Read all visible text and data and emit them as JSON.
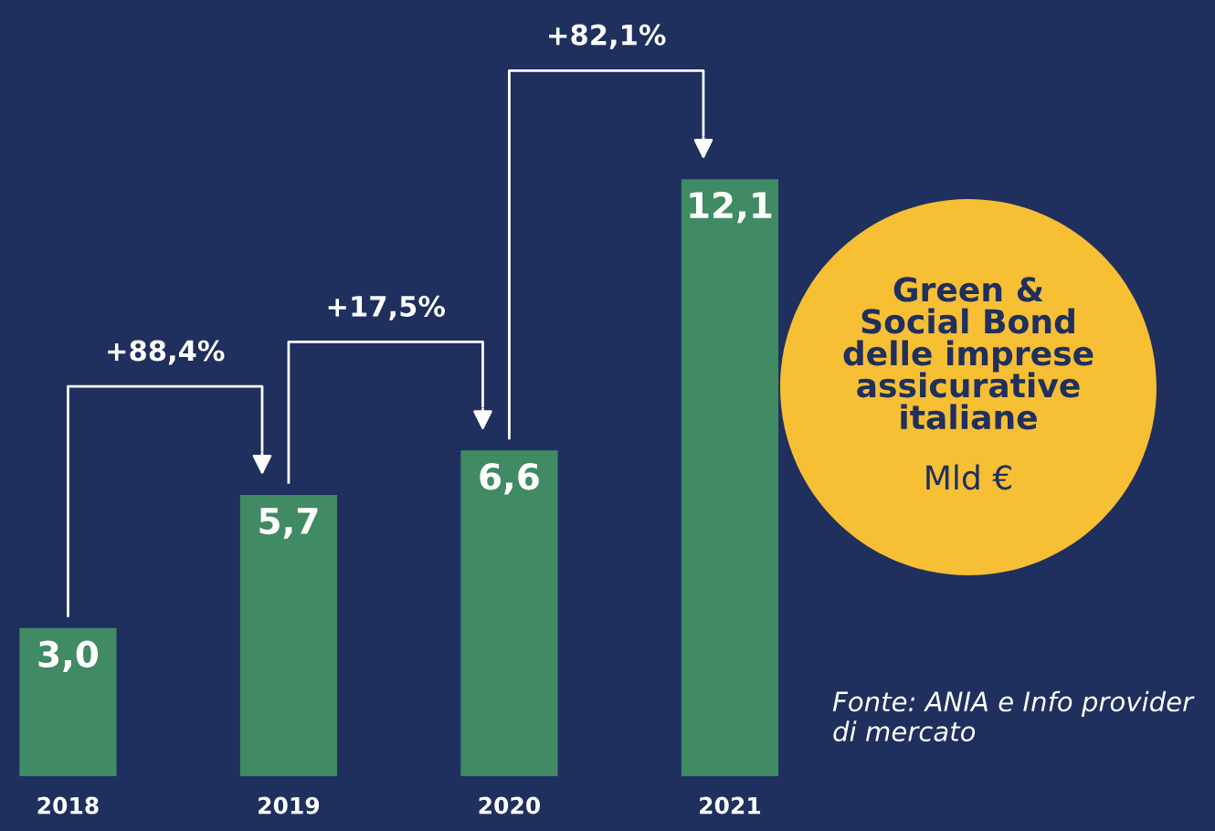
{
  "chart_data": {
    "type": "bar",
    "title": "Green &\nSocial Bond\ndelle imprese\nassicurative\nitaliane",
    "subtitle": "Mld €",
    "categories": [
      "2018",
      "2019",
      "2020",
      "2021"
    ],
    "values": [
      3.0,
      5.7,
      6.6,
      12.1
    ],
    "value_labels": [
      "3,0",
      "5,7",
      "6,6",
      "12,1"
    ],
    "color": "#408a64",
    "annotations": [
      "+88,4%",
      "+17,5%",
      "+82,1%",
      "Fonte: ANIA e Info provider di mercato"
    ],
    "grid": false
  }
}
